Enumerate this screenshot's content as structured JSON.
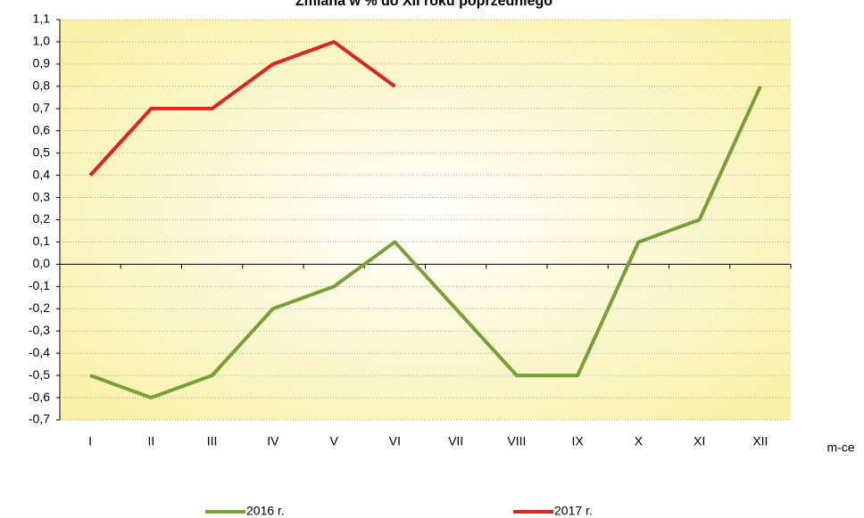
{
  "chart_data": {
    "type": "line",
    "title": "Zmiana w % do XII roku poprzedniego",
    "x_label": "m-ce",
    "categories": [
      "I",
      "II",
      "III",
      "IV",
      "V",
      "VI",
      "VII",
      "VIII",
      "IX",
      "X",
      "XI",
      "XII"
    ],
    "series": [
      {
        "name": "2016 r.",
        "color": "#76a136",
        "values": [
          -0.5,
          -0.6,
          -0.5,
          -0.2,
          -0.1,
          0.1,
          -0.2,
          -0.5,
          -0.5,
          0.1,
          0.2,
          0.8
        ]
      },
      {
        "name": "2017 r.",
        "color": "#e0231c",
        "values": [
          0.4,
          0.7,
          0.7,
          0.9,
          1.0,
          0.8,
          null,
          null,
          null,
          null,
          null,
          null
        ]
      }
    ],
    "ylim": [
      -0.7,
      1.1
    ],
    "yticks": [
      {
        "value": 1.1,
        "label": "1,1"
      },
      {
        "value": 1.0,
        "label": "1,0"
      },
      {
        "value": 0.9,
        "label": "0,9"
      },
      {
        "value": 0.8,
        "label": "0,8"
      },
      {
        "value": 0.7,
        "label": "0,7"
      },
      {
        "value": 0.6,
        "label": "0,6"
      },
      {
        "value": 0.5,
        "label": "0,5"
      },
      {
        "value": 0.4,
        "label": "0,4"
      },
      {
        "value": 0.3,
        "label": "0,3"
      },
      {
        "value": 0.2,
        "label": "0,2"
      },
      {
        "value": 0.1,
        "label": "0,1"
      },
      {
        "value": 0.0,
        "label": "0,0"
      },
      {
        "value": -0.1,
        "label": "-0,1"
      },
      {
        "value": -0.2,
        "label": "-0,2"
      },
      {
        "value": -0.3,
        "label": "-0,3"
      },
      {
        "value": -0.4,
        "label": "-0,4"
      },
      {
        "value": -0.5,
        "label": "-0,5"
      },
      {
        "value": -0.6,
        "label": "-0,6"
      },
      {
        "value": -0.7,
        "label": "-0,7"
      }
    ],
    "grid": true
  }
}
